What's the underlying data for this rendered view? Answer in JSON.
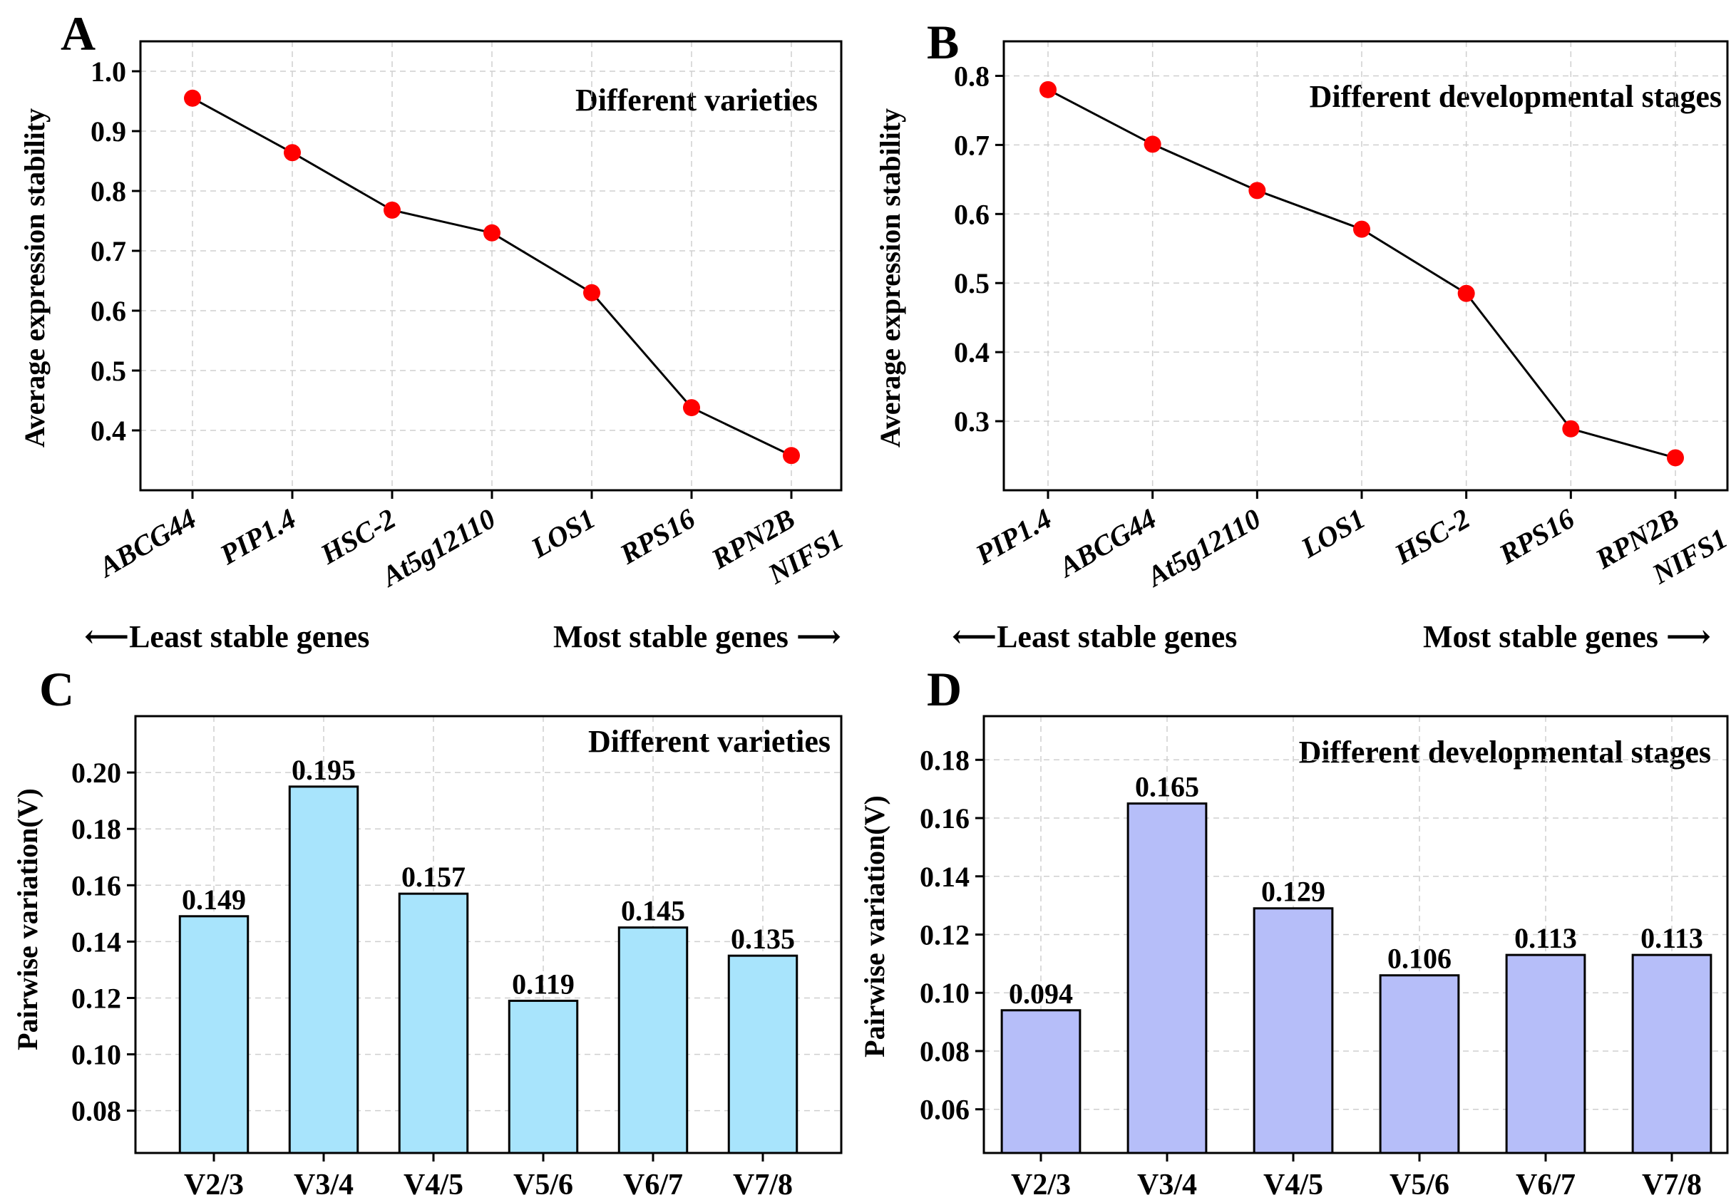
{
  "chart_data": [
    {
      "id": "A",
      "panel_label": "A",
      "type": "line",
      "title": "Different varieties",
      "ylabel": "Average expression stability",
      "categories": [
        "ABCG44",
        "PIP1.4",
        "HSC-2",
        "At5g12110",
        "LOS1",
        "RPS16",
        "RPN2B NIFS1"
      ],
      "category_lines": [
        [
          "ABCG44"
        ],
        [
          "PIP1.4"
        ],
        [
          "HSC-2"
        ],
        [
          "At5g12110"
        ],
        [
          "LOS1"
        ],
        [
          "RPS16"
        ],
        [
          "RPN2B",
          "NIFS1"
        ]
      ],
      "values": [
        0.955,
        0.864,
        0.768,
        0.73,
        0.63,
        0.438,
        0.358
      ],
      "ylim": [
        0.3,
        1.05
      ],
      "yticks": [
        0.4,
        0.5,
        0.6,
        0.7,
        0.8,
        0.9,
        1.0
      ],
      "ytick_labels": [
        "0.4",
        "0.5",
        "0.6",
        "0.7",
        "0.8",
        "0.9",
        "1.0"
      ],
      "footer_left": "⟵Least stable genes",
      "footer_right": "Most stable genes ⟶",
      "grid": true,
      "colors": {
        "line": "#000000",
        "marker": "#ff0000"
      }
    },
    {
      "id": "B",
      "panel_label": "B",
      "type": "line",
      "title": "Different developmental stages",
      "ylabel": "Average expression stability",
      "categories": [
        "PIP1.4",
        "ABCG44",
        "At5g12110",
        "LOS1",
        "HSC-2",
        "RPS16",
        "RPN2B NIFS1"
      ],
      "category_lines": [
        [
          "PIP1.4"
        ],
        [
          "ABCG44"
        ],
        [
          "At5g12110"
        ],
        [
          "LOS1"
        ],
        [
          "HSC-2"
        ],
        [
          "RPS16"
        ],
        [
          "RPN2B",
          "NIFS1"
        ]
      ],
      "values": [
        0.78,
        0.701,
        0.634,
        0.578,
        0.485,
        0.289,
        0.247
      ],
      "ylim": [
        0.2,
        0.85
      ],
      "yticks": [
        0.3,
        0.4,
        0.5,
        0.6,
        0.7,
        0.8
      ],
      "ytick_labels": [
        "0.3",
        "0.4",
        "0.5",
        "0.6",
        "0.7",
        "0.8"
      ],
      "footer_left": "⟵Least stable genes",
      "footer_right": "Most stable genes ⟶",
      "grid": true,
      "colors": {
        "line": "#000000",
        "marker": "#ff0000"
      }
    },
    {
      "id": "C",
      "panel_label": "C",
      "type": "bar",
      "title": "Different varieties",
      "ylabel": "Pairwise variation(V)",
      "categories": [
        "V2/3",
        "V3/4",
        "V4/5",
        "V5/6",
        "V6/7",
        "V7/8"
      ],
      "values": [
        0.149,
        0.195,
        0.157,
        0.119,
        0.145,
        0.135
      ],
      "value_labels": [
        "0.149",
        "0.195",
        "0.157",
        "0.119",
        "0.145",
        "0.135"
      ],
      "ylim": [
        0.065,
        0.22
      ],
      "yticks": [
        0.08,
        0.1,
        0.12,
        0.14,
        0.16,
        0.18,
        0.2
      ],
      "ytick_labels": [
        "0.08",
        "0.10",
        "0.12",
        "0.14",
        "0.16",
        "0.18",
        "0.20"
      ],
      "grid": true,
      "colors": {
        "bar": "#a8e4fc"
      }
    },
    {
      "id": "D",
      "panel_label": "D",
      "type": "bar",
      "title": "Different developmental stages",
      "ylabel": "Pairwise variation(V)",
      "categories": [
        "V2/3",
        "V3/4",
        "V4/5",
        "V5/6",
        "V6/7",
        "V7/8"
      ],
      "values": [
        0.094,
        0.165,
        0.129,
        0.106,
        0.113,
        0.113
      ],
      "value_labels": [
        "0.094",
        "0.165",
        "0.129",
        "0.106",
        "0.113",
        "0.113"
      ],
      "ylim": [
        0.045,
        0.195
      ],
      "yticks": [
        0.06,
        0.08,
        0.1,
        0.12,
        0.14,
        0.16,
        0.18
      ],
      "ytick_labels": [
        "0.06",
        "0.08",
        "0.10",
        "0.12",
        "0.14",
        "0.16",
        "0.18"
      ],
      "grid": true,
      "colors": {
        "bar": "#b6bef9"
      }
    }
  ]
}
